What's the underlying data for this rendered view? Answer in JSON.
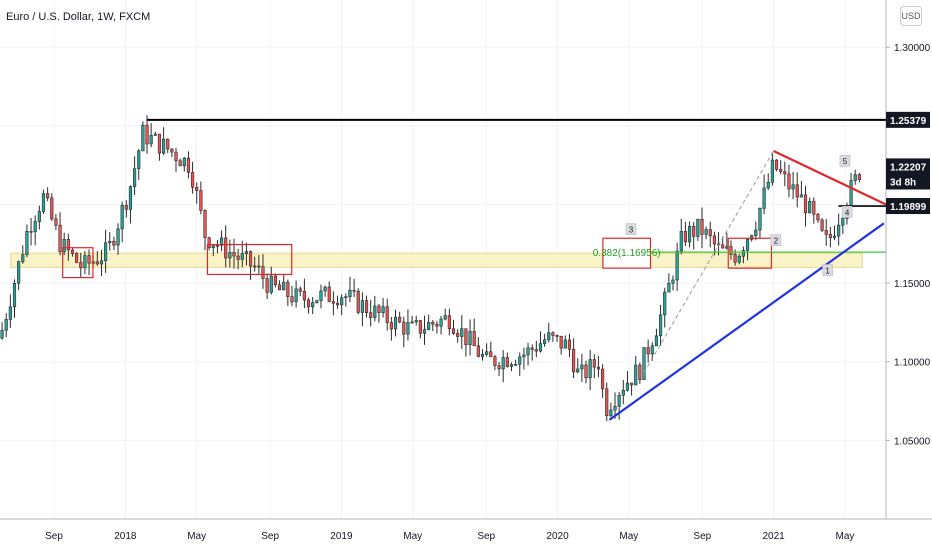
{
  "window": {
    "title": "Euro / U.S. Dollar, 1W, FXCM",
    "currency": "USD"
  },
  "chart_data": {
    "type": "candlestick",
    "title": "Euro / U.S. Dollar, 1W, FXCM",
    "ylim": [
      1.0,
      1.33
    ],
    "y_ticks": [
      "1.05000",
      "1.10000",
      "1.15000",
      "1.30000"
    ],
    "x_ticks": [
      {
        "label": "Sep",
        "t": 2017.67
      },
      {
        "label": "2018",
        "t": 2018.0
      },
      {
        "label": "May",
        "t": 2018.33
      },
      {
        "label": "Sep",
        "t": 2018.67
      },
      {
        "label": "2019",
        "t": 2019.0
      },
      {
        "label": "May",
        "t": 2019.33
      },
      {
        "label": "Sep",
        "t": 2019.67
      },
      {
        "label": "2020",
        "t": 2020.0
      },
      {
        "label": "May",
        "t": 2020.33
      },
      {
        "label": "Sep",
        "t": 2020.67
      },
      {
        "label": "2021",
        "t": 2021.0
      },
      {
        "label": "May",
        "t": 2021.33
      }
    ],
    "xlim": [
      2017.42,
      2021.52
    ],
    "key_points": [
      {
        "t": 2017.42,
        "p": 1.115
      },
      {
        "t": 2017.55,
        "p": 1.185
      },
      {
        "t": 2017.62,
        "p": 1.205
      },
      {
        "t": 2017.7,
        "p": 1.175
      },
      {
        "t": 2017.8,
        "p": 1.16
      },
      {
        "t": 2017.92,
        "p": 1.17
      },
      {
        "t": 2018.02,
        "p": 1.21
      },
      {
        "t": 2018.08,
        "p": 1.245
      },
      {
        "t": 2018.2,
        "p": 1.235
      },
      {
        "t": 2018.3,
        "p": 1.225
      },
      {
        "t": 2018.37,
        "p": 1.18
      },
      {
        "t": 2018.5,
        "p": 1.168
      },
      {
        "t": 2018.6,
        "p": 1.16
      },
      {
        "t": 2018.67,
        "p": 1.148
      },
      {
        "t": 2018.8,
        "p": 1.14
      },
      {
        "t": 2019.0,
        "p": 1.143
      },
      {
        "t": 2019.2,
        "p": 1.128
      },
      {
        "t": 2019.33,
        "p": 1.12
      },
      {
        "t": 2019.5,
        "p": 1.128
      },
      {
        "t": 2019.67,
        "p": 1.1
      },
      {
        "t": 2019.85,
        "p": 1.105
      },
      {
        "t": 2019.95,
        "p": 1.115
      },
      {
        "t": 2020.05,
        "p": 1.11
      },
      {
        "t": 2020.1,
        "p": 1.09
      },
      {
        "t": 2020.19,
        "p": 1.1
      },
      {
        "t": 2020.22,
        "p": 1.07
      },
      {
        "t": 2020.3,
        "p": 1.085
      },
      {
        "t": 2020.38,
        "p": 1.095
      },
      {
        "t": 2020.48,
        "p": 1.13
      },
      {
        "t": 2020.58,
        "p": 1.18
      },
      {
        "t": 2020.66,
        "p": 1.185
      },
      {
        "t": 2020.75,
        "p": 1.17
      },
      {
        "t": 2020.83,
        "p": 1.168
      },
      {
        "t": 2020.92,
        "p": 1.19
      },
      {
        "t": 2021.0,
        "p": 1.225
      },
      {
        "t": 2021.07,
        "p": 1.212
      },
      {
        "t": 2021.15,
        "p": 1.2
      },
      {
        "t": 2021.22,
        "p": 1.18
      },
      {
        "t": 2021.25,
        "p": 1.175
      },
      {
        "t": 2021.31,
        "p": 1.195
      },
      {
        "t": 2021.36,
        "p": 1.21
      },
      {
        "t": 2021.4,
        "p": 1.22207
      }
    ],
    "shapes": {
      "support_zone": {
        "t1": 2017.47,
        "t2": 2021.41,
        "p_top": 1.169,
        "p_bottom": 1.16
      },
      "resistance_line": {
        "t1": 2018.1,
        "t2": 2021.52,
        "p": 1.25379
      },
      "fib_line": {
        "t1": 2020.28,
        "t2": 2021.52,
        "p": 1.1697
      },
      "neckline": {
        "t1": 2021.3,
        "t2": 2021.52,
        "p": 1.19899
      },
      "blue_trend": {
        "t1": 2020.24,
        "p1": 1.063,
        "t2": 2021.51,
        "p2": 1.188
      },
      "red_trend": {
        "t1": 2021.0,
        "p1": 1.234,
        "t2": 2021.52,
        "p2": 1.2
      },
      "dashed_fib": {
        "t1": 2020.4,
        "p1": 1.093,
        "t2": 2021.0,
        "p2": 1.234
      },
      "boxes": [
        {
          "t1": 2017.71,
          "t2": 2017.85,
          "p_top": 1.1725,
          "p_bottom": 1.1535
        },
        {
          "t1": 2018.38,
          "t2": 2018.77,
          "p_top": 1.1745,
          "p_bottom": 1.1555
        },
        {
          "t1": 2020.79,
          "t2": 2020.99,
          "p_top": 1.1785,
          "p_bottom": 1.1595
        }
      ],
      "fib_box": {
        "t1": 2020.21,
        "t2": 2020.43,
        "p_top": 1.1785,
        "p_bottom": 1.1595
      }
    },
    "wave_labels": [
      {
        "label": "1",
        "t": 2021.25,
        "p": 1.158
      },
      {
        "label": "2",
        "t": 2021.01,
        "p": 1.177
      },
      {
        "label": "3",
        "t": 2020.34,
        "p": 1.184
      },
      {
        "label": "4",
        "t": 2021.34,
        "p": 1.195
      },
      {
        "label": "5",
        "t": 2021.33,
        "p": 1.2275
      }
    ],
    "fib_label": "0.382(1.16956)",
    "price_labels": [
      {
        "text": "1.25379",
        "p": 1.25379,
        "style": "dark"
      },
      {
        "text": "1.22207",
        "p": 1.2242,
        "style": "dark"
      },
      {
        "text": "3d 8h",
        "p": 1.2146,
        "style": "dark"
      },
      {
        "text": "1.19899",
        "p": 1.19899,
        "style": "dark"
      }
    ],
    "colors": {
      "up": "#26a69a",
      "down": "#ef5350",
      "resistance": "#000000",
      "trend_blue": "#1f35e0",
      "trend_red": "#e0262a",
      "fib": "#3ec93e",
      "zone_fill": "#fbf3c8",
      "zone_border": "#e6d88a",
      "box_border": "#e0262a"
    }
  }
}
